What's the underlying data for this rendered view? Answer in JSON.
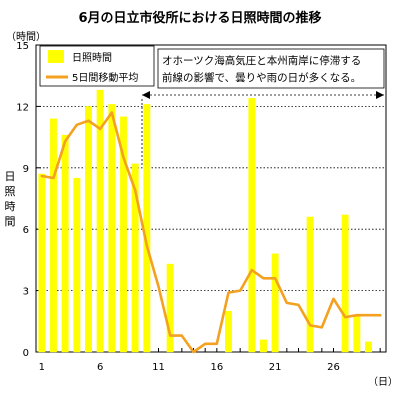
{
  "chart_data": {
    "type": "bar",
    "title": "6月の日立市役所における日照時間の推移",
    "ylabel": "日照時間",
    "y_unit": "（時間）",
    "x_unit": "（日）",
    "ylim": [
      0,
      15
    ],
    "yticks": [
      0,
      3,
      6,
      9,
      12,
      15
    ],
    "xlim": [
      1,
      30
    ],
    "xticks": [
      1,
      6,
      11,
      16,
      21,
      26
    ],
    "grid": "horizontal-dotted",
    "legend_position": "top-left",
    "annotation": [
      "オホーツク海高気圧と本州南岸に停滞する",
      "前線の影響で、曇りや雨の日が多くなる。"
    ],
    "x": [
      1,
      2,
      3,
      4,
      5,
      6,
      7,
      8,
      9,
      10,
      11,
      12,
      13,
      14,
      15,
      16,
      17,
      18,
      19,
      20,
      21,
      22,
      23,
      24,
      25,
      26,
      27,
      28,
      29,
      30
    ],
    "series": [
      {
        "name": "日照時間",
        "kind": "bar",
        "color": "#ffff00",
        "values": [
          8.7,
          11.4,
          10.6,
          8.5,
          12.0,
          12.8,
          12.1,
          11.5,
          9.2,
          12.1,
          null,
          4.3,
          null,
          null,
          null,
          null,
          2.0,
          null,
          12.4,
          0.6,
          4.8,
          null,
          null,
          6.6,
          null,
          null,
          6.7,
          1.8,
          0.5,
          null
        ]
      },
      {
        "name": "5日間移動平均",
        "kind": "line",
        "color": "#f4a020",
        "values": [
          8.6,
          8.5,
          10.3,
          11.1,
          11.3,
          10.9,
          11.7,
          9.5,
          7.9,
          5.2,
          3.2,
          0.8,
          0.8,
          0.0,
          0.4,
          0.4,
          2.9,
          3.0,
          4.0,
          3.6,
          3.6,
          2.4,
          2.3,
          1.3,
          1.2,
          2.6,
          1.7,
          1.8,
          1.8,
          1.8
        ]
      }
    ]
  }
}
